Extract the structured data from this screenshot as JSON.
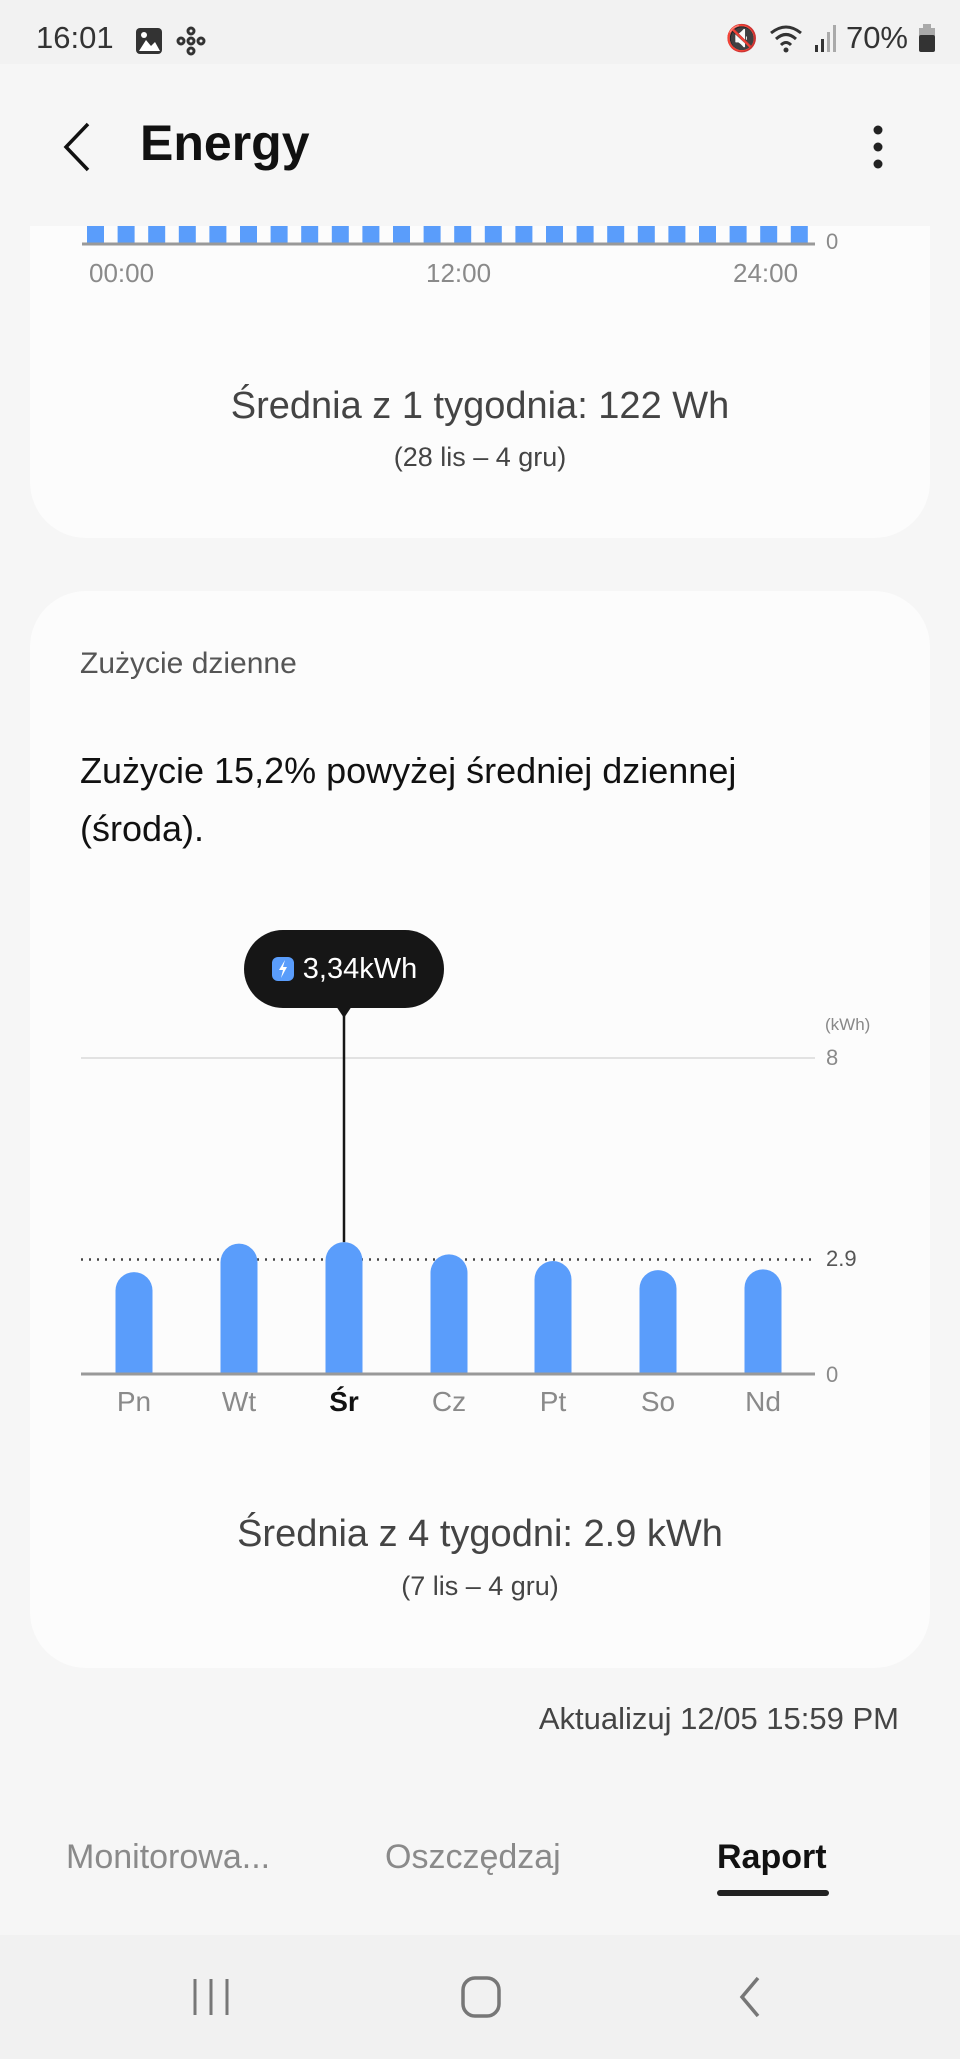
{
  "status_bar": {
    "time": "16:01",
    "battery": "70%",
    "icons": [
      "image-icon",
      "network-icon",
      "mute-icon",
      "wifi-icon",
      "signal-icon",
      "battery-icon"
    ]
  },
  "header": {
    "title": "Energy",
    "back_icon": "chevron-left-icon",
    "menu_icon": "more-vertical-icon"
  },
  "hourly_card": {
    "chart_data": {
      "type": "bar",
      "x_tick_labels": [
        "00:00",
        "12:00",
        "24:00"
      ],
      "y_tick_labels": [
        "0"
      ]
    },
    "average": "Średnia z 1 tygodnia: 122 Wh",
    "range": "(28 lis – 4 gru)"
  },
  "daily_card": {
    "title": "Zużycie dzienne",
    "headline": "Zużycie 15,2% powyżej średniej dziennej (środa).",
    "tooltip": "3,34kWh",
    "chart_data": {
      "type": "bar",
      "categories": [
        "Pn",
        "Wt",
        "Śr",
        "Cz",
        "Pt",
        "So",
        "Nd"
      ],
      "values": [
        2.58,
        3.3,
        3.34,
        3.03,
        2.86,
        2.63,
        2.65
      ],
      "selected": "Śr",
      "ylabel": "(kWh)",
      "ylim": [
        0,
        8
      ],
      "y_ticks": [
        "8",
        "2.9",
        "0"
      ],
      "average_line": 2.9,
      "bar_color": "#5a9dfb"
    },
    "average": "Średnia z 4 tygodni: 2.9 kWh",
    "range": "(7 lis – 4 gru)"
  },
  "updated": "Aktualizuj 12/05 15:59 PM",
  "tabs": [
    {
      "label": "Monitorowa...",
      "active": false
    },
    {
      "label": "Oszczędzaj",
      "active": false
    },
    {
      "label": "Raport",
      "active": true
    }
  ],
  "nav": {
    "recent": "recent-apps-icon",
    "home": "home-icon",
    "back": "back-icon"
  }
}
